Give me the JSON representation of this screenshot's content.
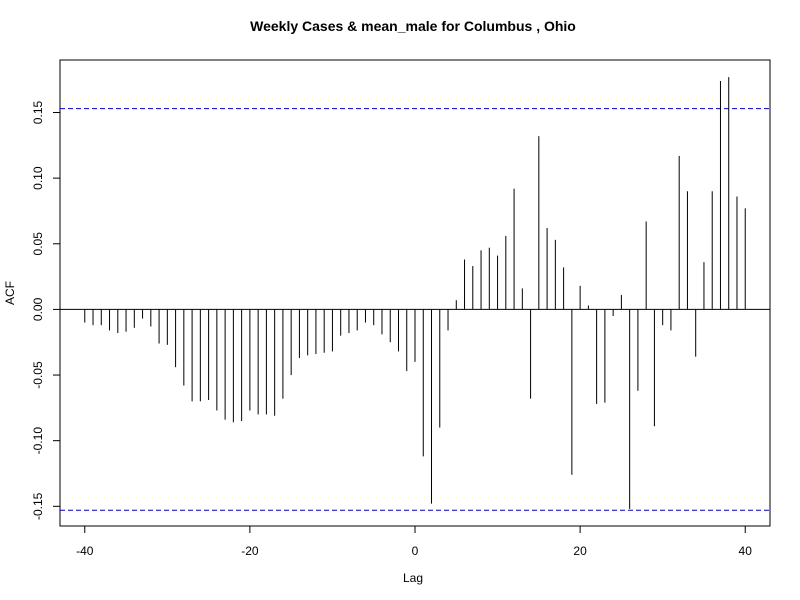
{
  "chart_data": {
    "type": "bar",
    "title": "Weekly Cases & mean_male for Columbus , Ohio",
    "xlabel": "Lag",
    "ylabel": "ACF",
    "xlim": [
      -43,
      43
    ],
    "ylim": [
      -0.165,
      0.19
    ],
    "x_ticks": [
      -40,
      -20,
      0,
      20,
      40
    ],
    "x_tick_labels": [
      "-40",
      "-20",
      "0",
      "20",
      "40"
    ],
    "y_ticks": [
      -0.15,
      -0.1,
      -0.05,
      0.0,
      0.05,
      0.1,
      0.15
    ],
    "y_tick_labels": [
      "-0.15",
      "-0.10",
      "-0.05",
      "0.00",
      "0.05",
      "0.10",
      "0.15"
    ],
    "confidence_bounds": [
      0.153,
      -0.153
    ],
    "bound_color": "#0000cc",
    "bar_color": "#000000",
    "grid": false,
    "lags": [
      -40,
      -39,
      -38,
      -37,
      -36,
      -35,
      -34,
      -33,
      -32,
      -31,
      -30,
      -29,
      -28,
      -27,
      -26,
      -25,
      -24,
      -23,
      -22,
      -21,
      -20,
      -19,
      -18,
      -17,
      -16,
      -15,
      -14,
      -13,
      -12,
      -11,
      -10,
      -9,
      -8,
      -7,
      -6,
      -5,
      -4,
      -3,
      -2,
      -1,
      0,
      1,
      2,
      3,
      4,
      5,
      6,
      7,
      8,
      9,
      10,
      11,
      12,
      13,
      14,
      15,
      16,
      17,
      18,
      19,
      20,
      21,
      22,
      23,
      24,
      25,
      26,
      27,
      28,
      29,
      30,
      31,
      32,
      33,
      34,
      35,
      36,
      37,
      38,
      39,
      40
    ],
    "values": [
      -0.01,
      -0.012,
      -0.012,
      -0.016,
      -0.018,
      -0.017,
      -0.014,
      -0.007,
      -0.013,
      -0.026,
      -0.027,
      -0.044,
      -0.058,
      -0.07,
      -0.07,
      -0.069,
      -0.077,
      -0.084,
      -0.086,
      -0.085,
      -0.077,
      -0.08,
      -0.08,
      -0.081,
      -0.068,
      -0.05,
      -0.037,
      -0.035,
      -0.034,
      -0.033,
      -0.032,
      -0.02,
      -0.018,
      -0.016,
      -0.01,
      -0.012,
      -0.019,
      -0.025,
      -0.032,
      -0.047,
      -0.04,
      -0.112,
      -0.148,
      -0.09,
      -0.016,
      0.007,
      0.038,
      0.033,
      0.045,
      0.047,
      0.041,
      0.056,
      0.092,
      0.016,
      -0.068,
      0.132,
      0.062,
      0.053,
      0.032,
      -0.126,
      0.018,
      0.003,
      -0.072,
      -0.071,
      -0.005,
      0.011,
      -0.152,
      -0.062,
      0.067,
      -0.089,
      -0.012,
      -0.016,
      0.117,
      0.09,
      -0.036,
      0.036,
      0.09,
      0.174,
      0.177,
      0.086,
      0.077
    ]
  }
}
